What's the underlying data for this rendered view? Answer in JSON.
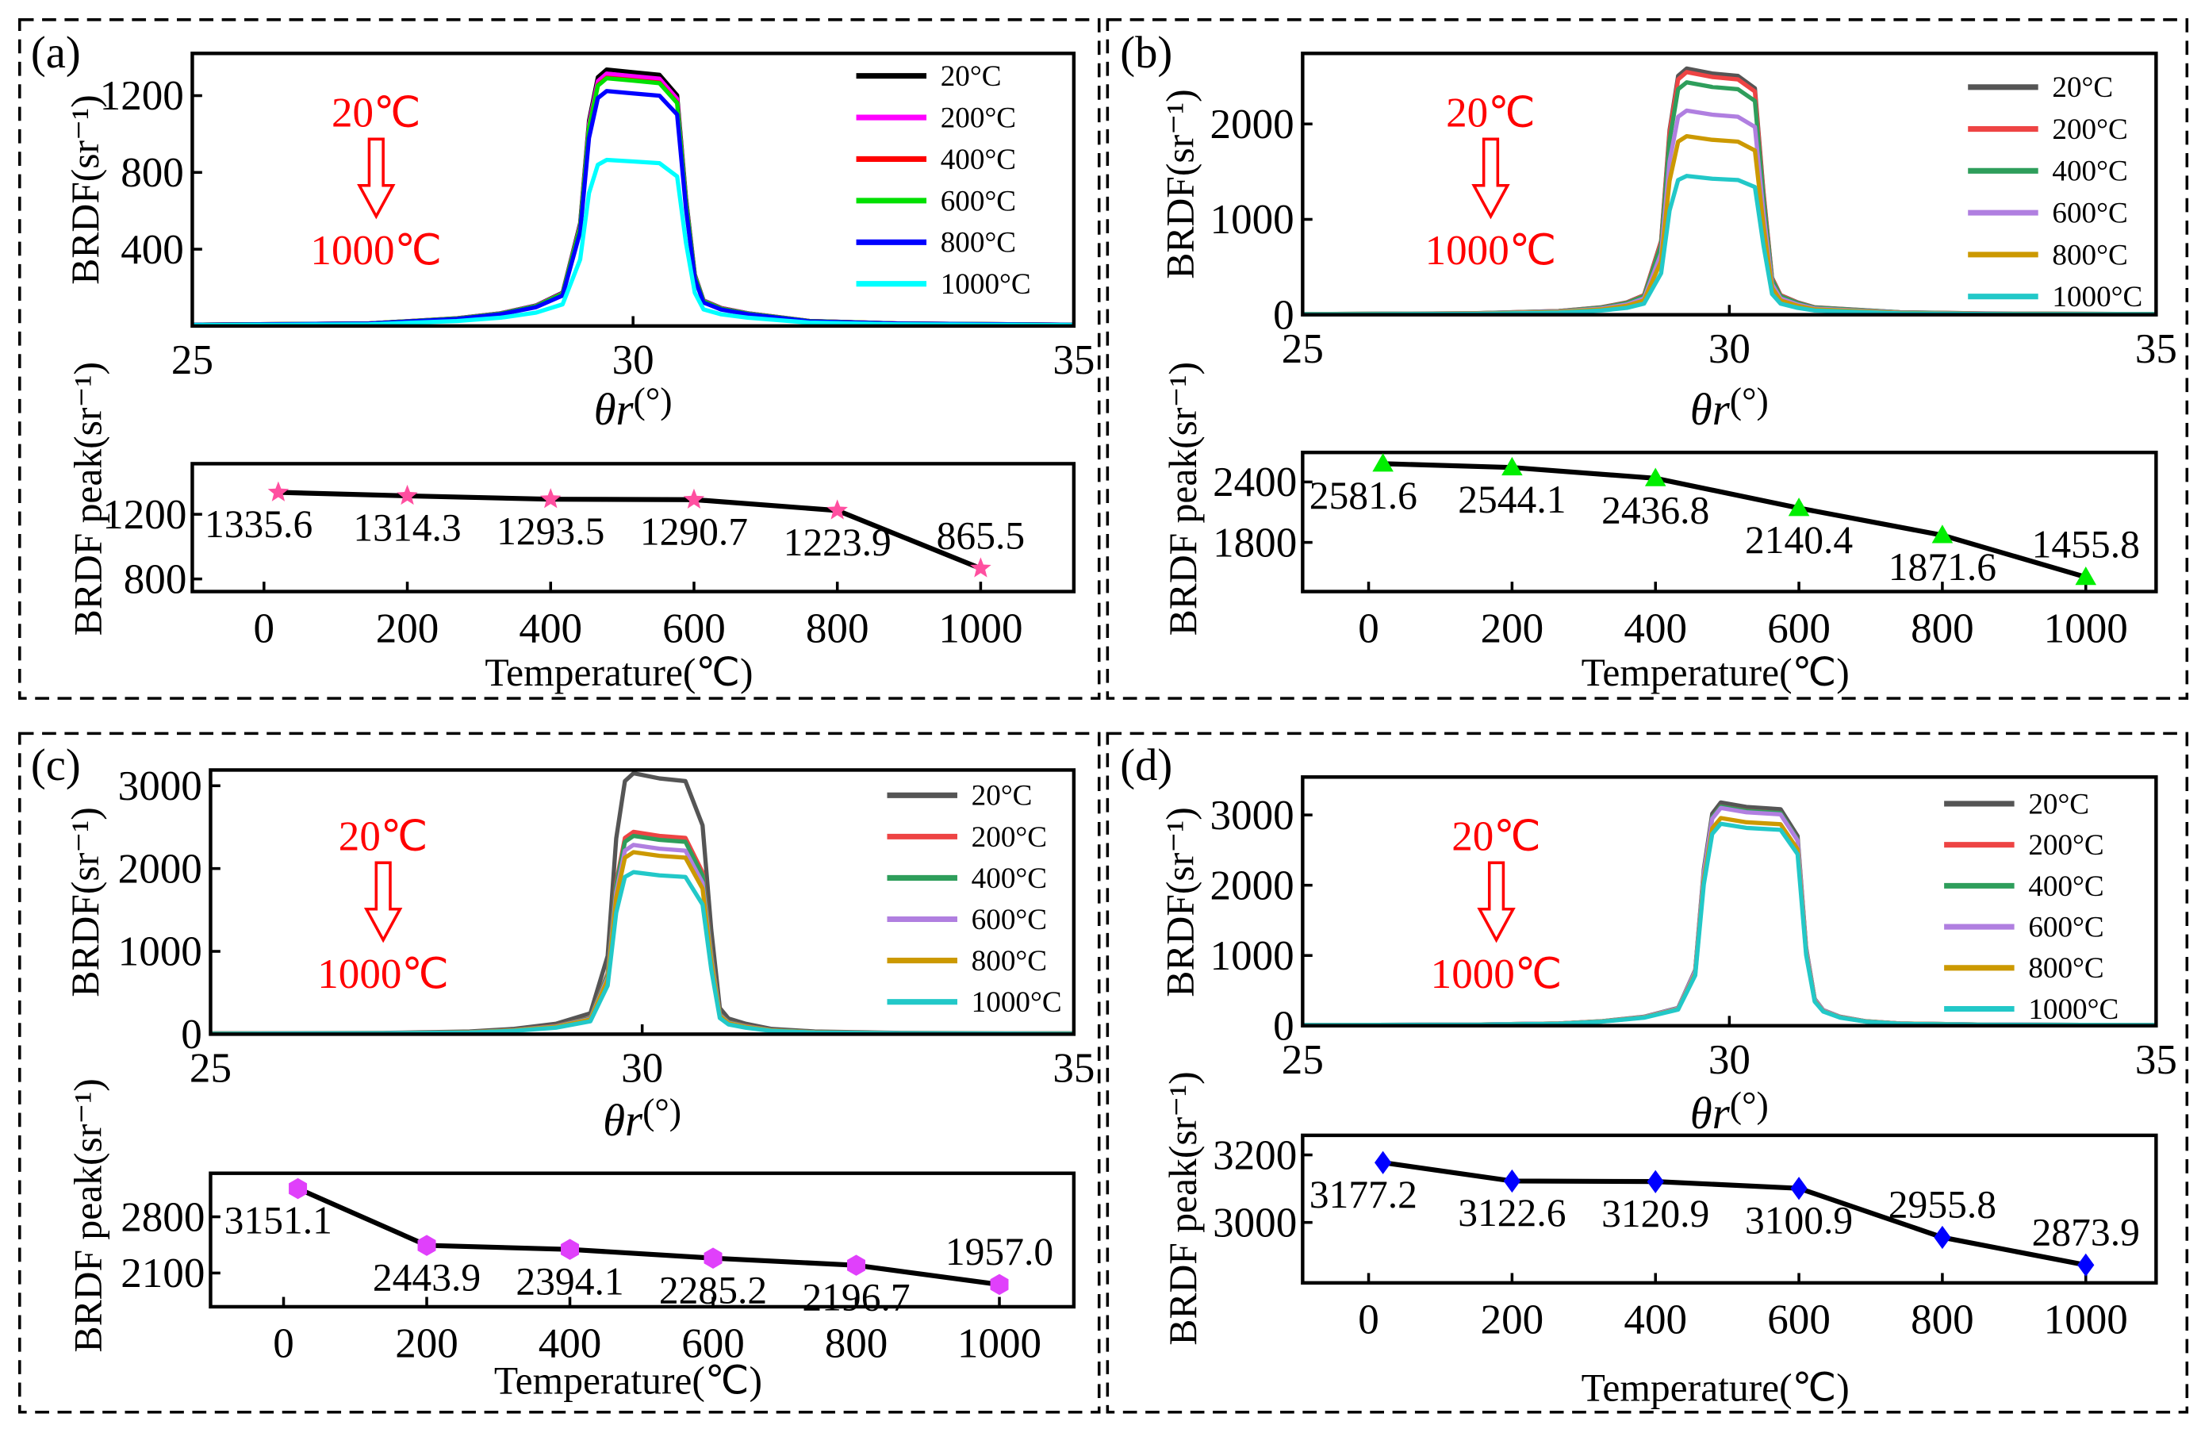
{
  "chart_data": [
    {
      "panel_label": "(a)",
      "annotation": {
        "from": "20℃",
        "to": "1000℃",
        "color": "#ff0000"
      },
      "top": {
        "type": "line",
        "xlabel_main": "θr",
        "xlabel_unit": "(°)",
        "ylabel": "BRDF(sr⁻¹)",
        "xlim": [
          25,
          35
        ],
        "ylim": [
          0,
          1420
        ],
        "xticks": [
          25,
          30,
          35
        ],
        "yticks": [
          400,
          800,
          1200
        ],
        "legend_position": "top-right",
        "profile": {
          "x": [
            25,
            27,
            28,
            28.5,
            28.9,
            29.2,
            29.4,
            29.5,
            29.6,
            29.7,
            30.0,
            30.3,
            30.5,
            30.6,
            30.7,
            30.8,
            31,
            31.3,
            32,
            33,
            35
          ],
          "f": [
            0.005,
            0.01,
            0.03,
            0.05,
            0.08,
            0.13,
            0.4,
            0.8,
            0.97,
            1,
            0.99,
            0.98,
            0.9,
            0.5,
            0.2,
            0.1,
            0.07,
            0.05,
            0.02,
            0.01,
            0.005
          ]
        },
        "series": [
          {
            "name": "20°C",
            "color": "#000000",
            "peak": 1335.6
          },
          {
            "name": "200°C",
            "color": "#ff00ff",
            "peak": 1314.3
          },
          {
            "name": "400°C",
            "color": "#ff0000",
            "peak": 1293.5
          },
          {
            "name": "600°C",
            "color": "#00e000",
            "peak": 1290.7
          },
          {
            "name": "800°C",
            "color": "#0000ff",
            "peak": 1223.9
          },
          {
            "name": "1000°C",
            "color": "#00ffff",
            "peak": 865.5
          }
        ]
      },
      "bottom": {
        "type": "line",
        "xlabel": "Temperature(℃)",
        "ylabel": "BRDF peak(sr⁻¹)",
        "xlim": [
          -100,
          1130
        ],
        "ylim": [
          722,
          1513
        ],
        "xticks": [
          0,
          200,
          400,
          600,
          800,
          1000
        ],
        "yticks": [
          800,
          1200
        ],
        "marker": "star",
        "marker_color": "#ff4fa0",
        "x": [
          20,
          200,
          400,
          600,
          800,
          1000
        ],
        "y": [
          1335.6,
          1314.3,
          1293.5,
          1290.7,
          1223.9,
          865.5
        ],
        "labels": [
          "1335.6",
          "1314.3",
          "1293.5",
          "1290.7",
          "1223.9",
          "865.5"
        ]
      }
    },
    {
      "panel_label": "(b)",
      "annotation": {
        "from": "20℃",
        "to": "1000℃",
        "color": "#ff0000"
      },
      "top": {
        "type": "line",
        "xlabel_main": "θr",
        "xlabel_unit": "(°)",
        "ylabel": "BRDF(sr⁻¹)",
        "xlim": [
          25,
          35
        ],
        "ylim": [
          0,
          2740
        ],
        "xticks": [
          25,
          30,
          35
        ],
        "yticks": [
          0,
          1000,
          2000
        ],
        "legend_position": "top-right",
        "profile": {
          "x": [
            25,
            27,
            28,
            28.5,
            28.8,
            29.0,
            29.2,
            29.3,
            29.4,
            29.5,
            29.8,
            30.1,
            30.3,
            30.4,
            30.5,
            30.6,
            30.8,
            31,
            32,
            33,
            35
          ],
          "f": [
            0.003,
            0.006,
            0.015,
            0.03,
            0.05,
            0.08,
            0.3,
            0.75,
            0.97,
            1,
            0.98,
            0.97,
            0.92,
            0.5,
            0.15,
            0.08,
            0.05,
            0.03,
            0.01,
            0.005,
            0.003
          ]
        },
        "series": [
          {
            "name": "20°C",
            "color": "#555555",
            "peak": 2581.6
          },
          {
            "name": "200°C",
            "color": "#ee4444",
            "peak": 2544.1
          },
          {
            "name": "400°C",
            "color": "#2e9e5b",
            "peak": 2436.8
          },
          {
            "name": "600°C",
            "color": "#b07fe0",
            "peak": 2140.4
          },
          {
            "name": "800°C",
            "color": "#cc9900",
            "peak": 1871.6
          },
          {
            "name": "1000°C",
            "color": "#22c8c8",
            "peak": 1455.8
          }
        ]
      },
      "bottom": {
        "type": "line",
        "xlabel": "Temperature(℃)",
        "ylabel": "BRDF peak(sr⁻¹)",
        "xlim": [
          -92,
          1098
        ],
        "ylim": [
          1312,
          2693
        ],
        "xticks": [
          0,
          200,
          400,
          600,
          800,
          1000
        ],
        "yticks": [
          1800,
          2400
        ],
        "marker": "triangle",
        "marker_color": "#00ee00",
        "x": [
          20,
          200,
          400,
          600,
          800,
          1000
        ],
        "y": [
          2581.6,
          2544.1,
          2436.8,
          2140.4,
          1871.6,
          1455.8
        ],
        "labels": [
          "2581.6",
          "2544.1",
          "2436.8",
          "2140.4",
          "1871.6",
          "1455.8"
        ]
      }
    },
    {
      "panel_label": "(c)",
      "annotation": {
        "from": "20℃",
        "to": "1000℃",
        "color": "#ff0000"
      },
      "top": {
        "type": "line",
        "xlabel_main": "θr",
        "xlabel_unit": "(°)",
        "ylabel": "BRDF(sr⁻¹)",
        "xlim": [
          25,
          35
        ],
        "ylim": [
          0,
          3190
        ],
        "xticks": [
          25,
          30,
          35
        ],
        "yticks": [
          0,
          1000,
          2000,
          3000
        ],
        "legend_position": "top-right",
        "profile": {
          "x": [
            25,
            27,
            28,
            28.5,
            29.0,
            29.4,
            29.6,
            29.7,
            29.8,
            29.9,
            30.2,
            30.5,
            30.7,
            30.8,
            30.9,
            31.0,
            31.2,
            31.5,
            32,
            33,
            35
          ],
          "f": [
            0.003,
            0.005,
            0.01,
            0.02,
            0.04,
            0.08,
            0.3,
            0.75,
            0.97,
            1,
            0.98,
            0.97,
            0.8,
            0.4,
            0.1,
            0.06,
            0.04,
            0.02,
            0.01,
            0.005,
            0.003
          ]
        },
        "series": [
          {
            "name": "20°C",
            "color": "#555555",
            "peak": 3151.1
          },
          {
            "name": "200°C",
            "color": "#ee4444",
            "peak": 2443.9
          },
          {
            "name": "400°C",
            "color": "#2e9e5b",
            "peak": 2394.1
          },
          {
            "name": "600°C",
            "color": "#b07fe0",
            "peak": 2285.2
          },
          {
            "name": "800°C",
            "color": "#cc9900",
            "peak": 2196.7
          },
          {
            "name": "1000°C",
            "color": "#22c8c8",
            "peak": 1957.0
          }
        ]
      },
      "bottom": {
        "type": "line",
        "xlabel": "Temperature(℃)",
        "ylabel": "BRDF peak(sr⁻¹)",
        "xlim": [
          -102,
          1104
        ],
        "ylim": [
          1680,
          3342
        ],
        "xticks": [
          0,
          200,
          400,
          600,
          800,
          1000
        ],
        "yticks": [
          2100,
          2800
        ],
        "marker": "hexagon",
        "marker_color": "#e040fb",
        "x": [
          20,
          200,
          400,
          600,
          800,
          1000
        ],
        "y": [
          3151.1,
          2443.9,
          2394.1,
          2285.2,
          2196.7,
          1957.0
        ],
        "labels": [
          "3151.1",
          "2443.9",
          "2394.1",
          "2285.2",
          "2196.7",
          "1957.0"
        ]
      }
    },
    {
      "panel_label": "(d)",
      "annotation": {
        "from": "20℃",
        "to": "1000℃",
        "color": "#ff0000"
      },
      "top": {
        "type": "line",
        "xlabel_main": "θr",
        "xlabel_unit": "(°)",
        "ylabel": "BRDF(sr⁻¹)",
        "xlim": [
          25,
          35
        ],
        "ylim": [
          0,
          3540
        ],
        "xticks": [
          25,
          30,
          35
        ],
        "yticks": [
          0,
          1000,
          2000,
          3000
        ],
        "legend_position": "top-right",
        "profile": {
          "x": [
            25,
            27,
            28,
            28.5,
            29.0,
            29.4,
            29.6,
            29.7,
            29.8,
            29.9,
            30.2,
            30.6,
            30.8,
            30.9,
            31.0,
            31.1,
            31.3,
            31.6,
            32,
            33,
            35
          ],
          "f": [
            0.003,
            0.005,
            0.01,
            0.02,
            0.04,
            0.08,
            0.25,
            0.7,
            0.95,
            1,
            0.98,
            0.97,
            0.85,
            0.35,
            0.12,
            0.07,
            0.04,
            0.02,
            0.01,
            0.005,
            0.003
          ]
        },
        "series": [
          {
            "name": "20°C",
            "color": "#555555",
            "peak": 3177.2
          },
          {
            "name": "200°C",
            "color": "#ee4444",
            "peak": 3122.6
          },
          {
            "name": "400°C",
            "color": "#2e9e5b",
            "peak": 3120.9
          },
          {
            "name": "600°C",
            "color": "#b07fe0",
            "peak": 3100.9
          },
          {
            "name": "800°C",
            "color": "#cc9900",
            "peak": 2955.8
          },
          {
            "name": "1000°C",
            "color": "#22c8c8",
            "peak": 2873.9
          }
        ]
      },
      "bottom": {
        "type": "line",
        "xlabel": "Temperature(℃)",
        "ylabel": "BRDF peak(sr⁻¹)",
        "xlim": [
          -92,
          1098
        ],
        "ylim": [
          2821,
          3258
        ],
        "xticks": [
          0,
          200,
          400,
          600,
          800,
          1000
        ],
        "yticks": [
          3000,
          3200
        ],
        "marker": "diamond",
        "marker_color": "#0000ff",
        "x": [
          20,
          200,
          400,
          600,
          800,
          1000
        ],
        "y": [
          3177.2,
          3122.6,
          3120.9,
          3100.9,
          2955.8,
          2873.9
        ],
        "labels": [
          "3177.2",
          "3122.6",
          "3120.9",
          "3100.9",
          "2955.8",
          "2873.9"
        ]
      }
    }
  ]
}
